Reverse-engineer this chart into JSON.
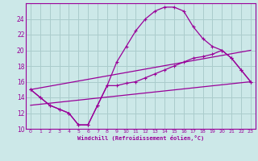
{
  "background_color": "#cce8e8",
  "grid_color": "#aacccc",
  "line_color": "#990099",
  "xlabel": "Windchill (Refroidissement éolien,°C)",
  "xlim": [
    -0.5,
    23.5
  ],
  "ylim": [
    10,
    26
  ],
  "yticks": [
    10,
    12,
    14,
    16,
    18,
    20,
    22,
    24
  ],
  "xticks": [
    0,
    1,
    2,
    3,
    4,
    5,
    6,
    7,
    8,
    9,
    10,
    11,
    12,
    13,
    14,
    15,
    16,
    17,
    18,
    19,
    20,
    21,
    22,
    23
  ],
  "series0": {
    "x": [
      0,
      1,
      2,
      3,
      4,
      5,
      6,
      7,
      8,
      9,
      10,
      11,
      12,
      13,
      14,
      15,
      16,
      17,
      18,
      19,
      20,
      21,
      22,
      23
    ],
    "y": [
      15,
      14,
      13,
      12.5,
      12,
      10.5,
      10.5,
      13,
      15.5,
      18.5,
      20.5,
      22.5,
      24,
      25,
      25.5,
      25.5,
      25,
      23,
      21.5,
      20.5,
      20,
      19,
      17.5,
      16
    ]
  },
  "series1": {
    "x": [
      0,
      1,
      2,
      3,
      4,
      5,
      6,
      7,
      8,
      9,
      10,
      11,
      12,
      13,
      14,
      15,
      16,
      17,
      18,
      19,
      20,
      21,
      22,
      23
    ],
    "y": [
      15,
      14,
      13,
      12.5,
      12,
      10.5,
      10.5,
      13,
      15.5,
      15.5,
      15.8,
      16,
      16.5,
      17,
      17.5,
      18,
      18.5,
      19,
      19.2,
      19.5,
      20,
      19,
      17.5,
      16
    ]
  },
  "series2": {
    "x": [
      0,
      23
    ],
    "y": [
      15,
      20
    ]
  },
  "series3": {
    "x": [
      0,
      23
    ],
    "y": [
      13,
      16
    ]
  }
}
